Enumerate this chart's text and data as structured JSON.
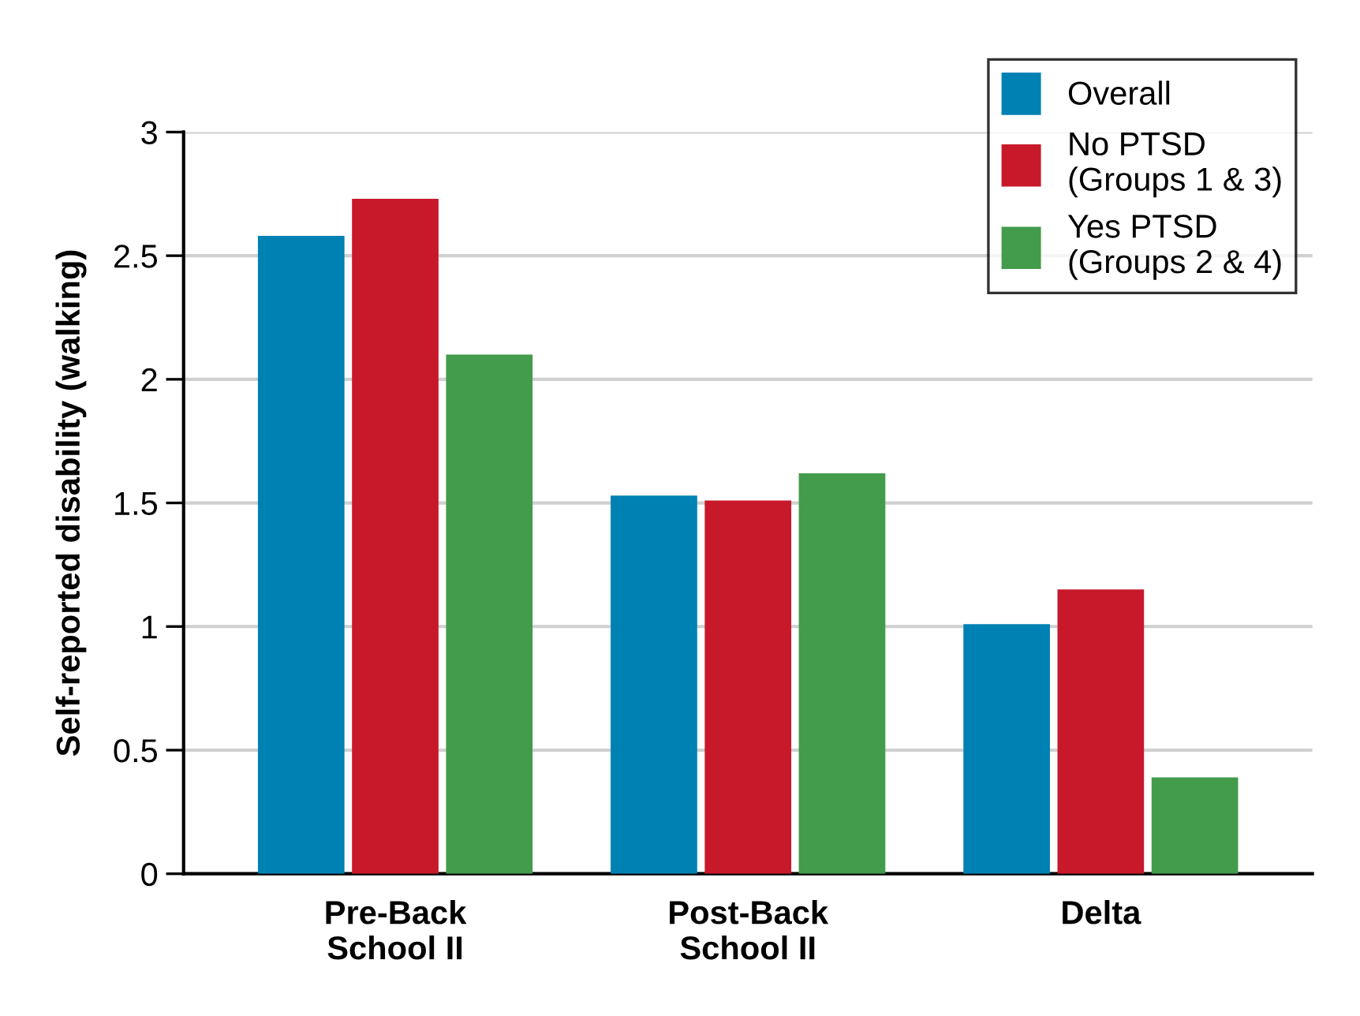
{
  "chart_data": {
    "type": "bar",
    "ylabel": "Self-reported disability (walking)",
    "categories": [
      "Pre-Back\nSchool II",
      "Post-Back\nSchool II",
      "Delta"
    ],
    "series": [
      {
        "name": "Overall",
        "color": "#0081b4",
        "values": [
          2.58,
          1.53,
          1.01
        ]
      },
      {
        "name": "No PTSD\n(Groups 1 & 3)",
        "color": "#c8192b",
        "values": [
          2.73,
          1.51,
          1.15
        ]
      },
      {
        "name": "Yes PTSD\n(Groups 2 & 4)",
        "color": "#439b4c",
        "values": [
          2.1,
          1.62,
          0.39
        ]
      }
    ],
    "ylim": [
      0,
      3
    ],
    "yticks": [
      0,
      0.5,
      1,
      1.5,
      2,
      2.5,
      3
    ],
    "grid": "y",
    "legend": "top right"
  }
}
